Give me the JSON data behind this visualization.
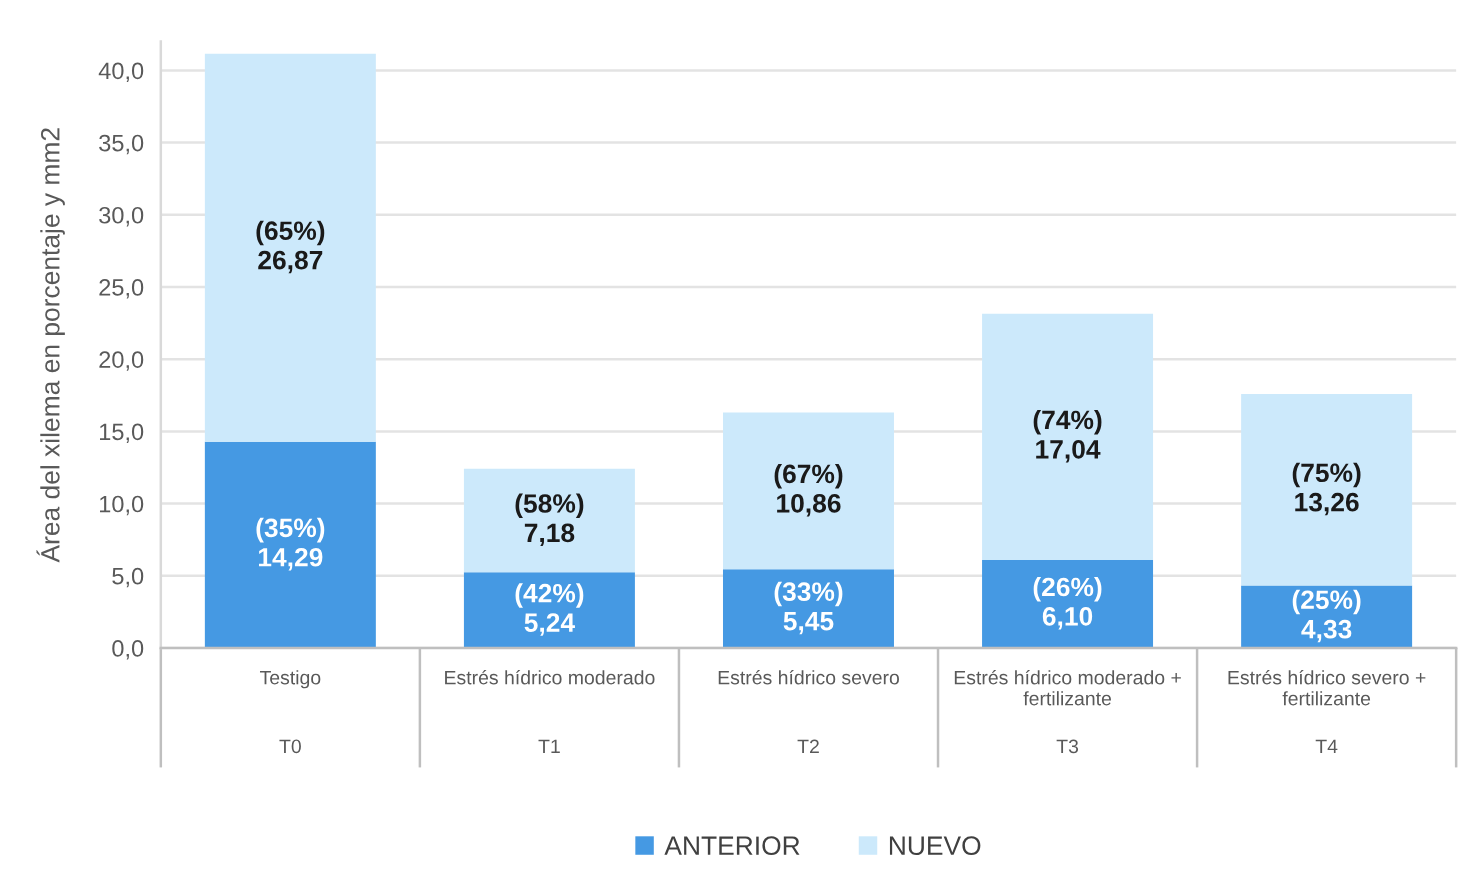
{
  "chart_data": {
    "type": "bar",
    "stacked": true,
    "ylabel": "Área del xilema en porcentaje y mm2",
    "categories": [
      "Testigo\nT0",
      "Estrés hídrico moderado\nT1",
      "Estrés hídrico severo\nT2",
      "Estrés hídrico moderado +\nfertilizante\nT3",
      "Estrés hídrico severo +\nfertilizante\nT4"
    ],
    "series": [
      {
        "name": "ANTERIOR",
        "color": "#4599e3",
        "values": [
          14.29,
          5.24,
          5.45,
          6.1,
          4.33
        ],
        "value_labels": [
          "(35%)\n14,29",
          "(42%)\n5,24",
          "(33%)\n5,45",
          "(26%)\n6,10",
          "(25%)\n4,33"
        ]
      },
      {
        "name": "NUEVO",
        "color": "#cce9fb",
        "values": [
          26.87,
          7.18,
          10.86,
          17.04,
          13.26
        ],
        "value_labels": [
          "(65%)\n26,87",
          "(58%)\n7,18",
          "(67%)\n10,86",
          "(74%)\n17,04",
          "(75%)\n13,26"
        ]
      }
    ],
    "ylim": [
      0,
      42
    ],
    "yticks": [
      {
        "value": 0,
        "label": "0,0"
      },
      {
        "value": 5,
        "label": "5,0"
      },
      {
        "value": 10,
        "label": "10,0"
      },
      {
        "value": 15,
        "label": "15,0"
      },
      {
        "value": 20,
        "label": "20,0"
      },
      {
        "value": 25,
        "label": "25,0"
      },
      {
        "value": 30,
        "label": "30,0"
      },
      {
        "value": 35,
        "label": "35,0"
      },
      {
        "value": 40,
        "label": "40,0"
      }
    ],
    "grid": "y",
    "legend": "bottom"
  }
}
